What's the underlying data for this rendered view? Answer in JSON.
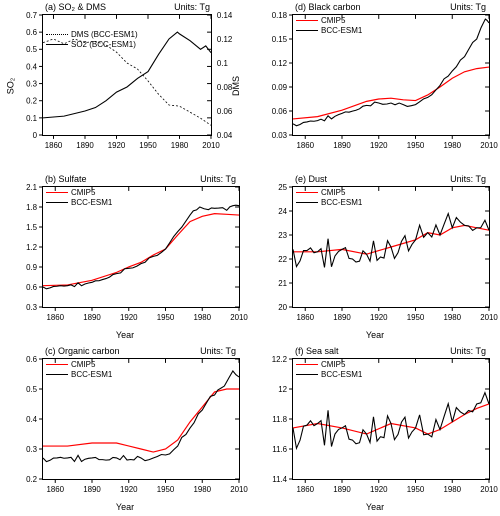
{
  "xyears": [
    1850,
    2010
  ],
  "xticks": [
    1860,
    1890,
    1920,
    1950,
    1980,
    2010
  ],
  "panels": {
    "a": {
      "title": "(a) SO₂ & DMS",
      "units": "Units: Tg",
      "ylabel": "SO₂",
      "ylabel_r": "DMS",
      "ylim": [
        0,
        0.7
      ],
      "ytick_step": 0.1,
      "ylim_r": [
        0.04,
        0.14
      ],
      "ytick_r_step": 0.02,
      "legend": [
        {
          "label": "DMS (BCC-ESM1)",
          "style": "d"
        },
        {
          "label": "SO2 (BCC-ESM1)",
          "style": "b"
        }
      ],
      "leg_pos": "tl2",
      "series": [
        {
          "style": "b",
          "axis": "l",
          "data": [
            [
              1850,
              0.1
            ],
            [
              1870,
              0.11
            ],
            [
              1890,
              0.14
            ],
            [
              1900,
              0.16
            ],
            [
              1910,
              0.2
            ],
            [
              1920,
              0.25
            ],
            [
              1930,
              0.28
            ],
            [
              1940,
              0.33
            ],
            [
              1950,
              0.37
            ],
            [
              1960,
              0.47
            ],
            [
              1970,
              0.56
            ],
            [
              1978,
              0.6
            ],
            [
              1980,
              0.59
            ],
            [
              1990,
              0.55
            ],
            [
              2000,
              0.5
            ],
            [
              2005,
              0.52
            ],
            [
              2010,
              0.48
            ]
          ]
        },
        {
          "style": "d",
          "axis": "r",
          "data": [
            [
              1850,
              0.117
            ],
            [
              1860,
              0.12
            ],
            [
              1870,
              0.116
            ],
            [
              1880,
              0.12
            ],
            [
              1890,
              0.117
            ],
            [
              1900,
              0.118
            ],
            [
              1910,
              0.115
            ],
            [
              1920,
              0.109
            ],
            [
              1930,
              0.1
            ],
            [
              1940,
              0.095
            ],
            [
              1950,
              0.085
            ],
            [
              1960,
              0.074
            ],
            [
              1970,
              0.065
            ],
            [
              1980,
              0.064
            ],
            [
              1990,
              0.059
            ],
            [
              2000,
              0.054
            ],
            [
              2010,
              0.048
            ]
          ]
        }
      ]
    },
    "b": {
      "title": "(b) Sulfate",
      "units": "Units: Tg",
      "xlabel": "Year",
      "ylim": [
        0.3,
        2.1
      ],
      "ytick_step": 0.3,
      "legend": [
        {
          "label": "CMIP5",
          "style": "r"
        },
        {
          "label": "BCC-ESM1",
          "style": "b"
        }
      ],
      "leg_pos": "tl",
      "series": [
        {
          "style": "r",
          "data": [
            [
              1850,
              0.62
            ],
            [
              1870,
              0.63
            ],
            [
              1890,
              0.7
            ],
            [
              1910,
              0.82
            ],
            [
              1920,
              0.9
            ],
            [
              1930,
              0.97
            ],
            [
              1940,
              1.08
            ],
            [
              1950,
              1.17
            ],
            [
              1960,
              1.38
            ],
            [
              1970,
              1.58
            ],
            [
              1980,
              1.66
            ],
            [
              1990,
              1.7
            ],
            [
              2000,
              1.69
            ],
            [
              2010,
              1.68
            ]
          ]
        },
        {
          "style": "b",
          "jag": 0.03,
          "data": [
            [
              1850,
              0.6
            ],
            [
              1870,
              0.62
            ],
            [
              1890,
              0.67
            ],
            [
              1910,
              0.8
            ],
            [
              1920,
              0.88
            ],
            [
              1930,
              0.95
            ],
            [
              1940,
              1.06
            ],
            [
              1950,
              1.17
            ],
            [
              1960,
              1.43
            ],
            [
              1970,
              1.68
            ],
            [
              1978,
              1.8
            ],
            [
              1985,
              1.76
            ],
            [
              1990,
              1.78
            ],
            [
              2000,
              1.75
            ],
            [
              2005,
              1.82
            ],
            [
              2010,
              1.82
            ]
          ]
        }
      ]
    },
    "c": {
      "title": "(c) Organic carbon",
      "units": "Units: Tg",
      "xlabel": "Year",
      "ylim": [
        0.2,
        0.6
      ],
      "ytick_step": 0.1,
      "legend": [
        {
          "label": "CMIP5",
          "style": "r"
        },
        {
          "label": "BCC-ESM1",
          "style": "b"
        }
      ],
      "leg_pos": "tl",
      "series": [
        {
          "style": "r",
          "data": [
            [
              1850,
              0.31
            ],
            [
              1870,
              0.31
            ],
            [
              1890,
              0.32
            ],
            [
              1910,
              0.32
            ],
            [
              1930,
              0.3
            ],
            [
              1940,
              0.29
            ],
            [
              1950,
              0.3
            ],
            [
              1960,
              0.33
            ],
            [
              1970,
              0.39
            ],
            [
              1980,
              0.44
            ],
            [
              1990,
              0.49
            ],
            [
              2000,
              0.5
            ],
            [
              2010,
              0.5
            ]
          ]
        },
        {
          "style": "b",
          "jag": 0.012,
          "data": [
            [
              1850,
              0.27
            ],
            [
              1870,
              0.27
            ],
            [
              1890,
              0.27
            ],
            [
              1910,
              0.27
            ],
            [
              1930,
              0.27
            ],
            [
              1940,
              0.27
            ],
            [
              1950,
              0.28
            ],
            [
              1960,
              0.31
            ],
            [
              1970,
              0.37
            ],
            [
              1980,
              0.43
            ],
            [
              1990,
              0.48
            ],
            [
              1998,
              0.51
            ],
            [
              2005,
              0.56
            ],
            [
              2010,
              0.54
            ]
          ]
        }
      ]
    },
    "d": {
      "title": "(d) Black carbon",
      "units": "Units: Tg",
      "ylim": [
        0.03,
        0.18
      ],
      "ytick_step": 0.03,
      "legend": [
        {
          "label": "CMIP5",
          "style": "r"
        },
        {
          "label": "BCC-ESM1",
          "style": "b"
        }
      ],
      "leg_pos": "tl",
      "series": [
        {
          "style": "r",
          "data": [
            [
              1850,
              0.05
            ],
            [
              1870,
              0.053
            ],
            [
              1890,
              0.061
            ],
            [
              1910,
              0.072
            ],
            [
              1920,
              0.075
            ],
            [
              1930,
              0.076
            ],
            [
              1940,
              0.074
            ],
            [
              1950,
              0.073
            ],
            [
              1960,
              0.08
            ],
            [
              1970,
              0.09
            ],
            [
              1980,
              0.101
            ],
            [
              1990,
              0.109
            ],
            [
              2000,
              0.113
            ],
            [
              2010,
              0.115
            ]
          ]
        },
        {
          "style": "b",
          "jag": 0.003,
          "data": [
            [
              1850,
              0.044
            ],
            [
              1870,
              0.048
            ],
            [
              1890,
              0.057
            ],
            [
              1910,
              0.067
            ],
            [
              1920,
              0.07
            ],
            [
              1930,
              0.07
            ],
            [
              1940,
              0.068
            ],
            [
              1950,
              0.068
            ],
            [
              1960,
              0.077
            ],
            [
              1970,
              0.092
            ],
            [
              1980,
              0.11
            ],
            [
              1990,
              0.128
            ],
            [
              2000,
              0.15
            ],
            [
              2007,
              0.175
            ],
            [
              2010,
              0.17
            ]
          ]
        }
      ]
    },
    "e": {
      "title": "(e) Dust",
      "units": "Units: Tg",
      "xlabel": "Year",
      "ylim": [
        20.0,
        25.0
      ],
      "ytick_step": 1.0,
      "legend": [
        {
          "label": "CMIP5",
          "style": "r"
        },
        {
          "label": "BCC-ESM1",
          "style": "b"
        }
      ],
      "leg_pos": "tl",
      "series": [
        {
          "style": "r",
          "data": [
            [
              1850,
              22.3
            ],
            [
              1870,
              22.3
            ],
            [
              1890,
              22.4
            ],
            [
              1910,
              22.2
            ],
            [
              1930,
              22.5
            ],
            [
              1950,
              22.8
            ],
            [
              1960,
              23.1
            ],
            [
              1970,
              23.0
            ],
            [
              1980,
              23.3
            ],
            [
              1990,
              23.4
            ],
            [
              2000,
              23.3
            ],
            [
              2010,
              23.2
            ]
          ]
        },
        {
          "style": "b",
          "jag": 0.7,
          "data": [
            [
              1850,
              22.4
            ],
            [
              1870,
              22.3
            ],
            [
              1890,
              22.4
            ],
            [
              1910,
              22.2
            ],
            [
              1930,
              22.5
            ],
            [
              1950,
              22.8
            ],
            [
              1960,
              23.1
            ],
            [
              1970,
              23.0
            ],
            [
              1980,
              23.3
            ],
            [
              1990,
              23.4
            ],
            [
              2000,
              23.3
            ],
            [
              2010,
              23.2
            ]
          ]
        }
      ]
    },
    "f": {
      "title": "(f) Sea salt",
      "units": "Units: Tg",
      "xlabel": "Year",
      "ylim": [
        11.4,
        12.2
      ],
      "ytick_step": 0.2,
      "legend": [
        {
          "label": "CMIP5",
          "style": "r"
        },
        {
          "label": "BCC-ESM1",
          "style": "b"
        }
      ],
      "leg_pos": "tl",
      "series": [
        {
          "style": "r",
          "data": [
            [
              1850,
              11.74
            ],
            [
              1870,
              11.77
            ],
            [
              1890,
              11.74
            ],
            [
              1910,
              11.7
            ],
            [
              1930,
              11.77
            ],
            [
              1950,
              11.74
            ],
            [
              1960,
              11.7
            ],
            [
              1970,
              11.73
            ],
            [
              1980,
              11.78
            ],
            [
              1990,
              11.83
            ],
            [
              2000,
              11.87
            ],
            [
              2010,
              11.9
            ]
          ]
        },
        {
          "style": "b",
          "jag": 0.14,
          "data": [
            [
              1850,
              11.74
            ],
            [
              1870,
              11.77
            ],
            [
              1890,
              11.74
            ],
            [
              1910,
              11.7
            ],
            [
              1930,
              11.77
            ],
            [
              1950,
              11.74
            ],
            [
              1960,
              11.7
            ],
            [
              1970,
              11.73
            ],
            [
              1980,
              11.78
            ],
            [
              1990,
              11.83
            ],
            [
              2000,
              11.9
            ],
            [
              2010,
              11.9
            ]
          ]
        }
      ]
    }
  },
  "order": [
    "a",
    "d",
    "b",
    "e",
    "c",
    "f"
  ]
}
